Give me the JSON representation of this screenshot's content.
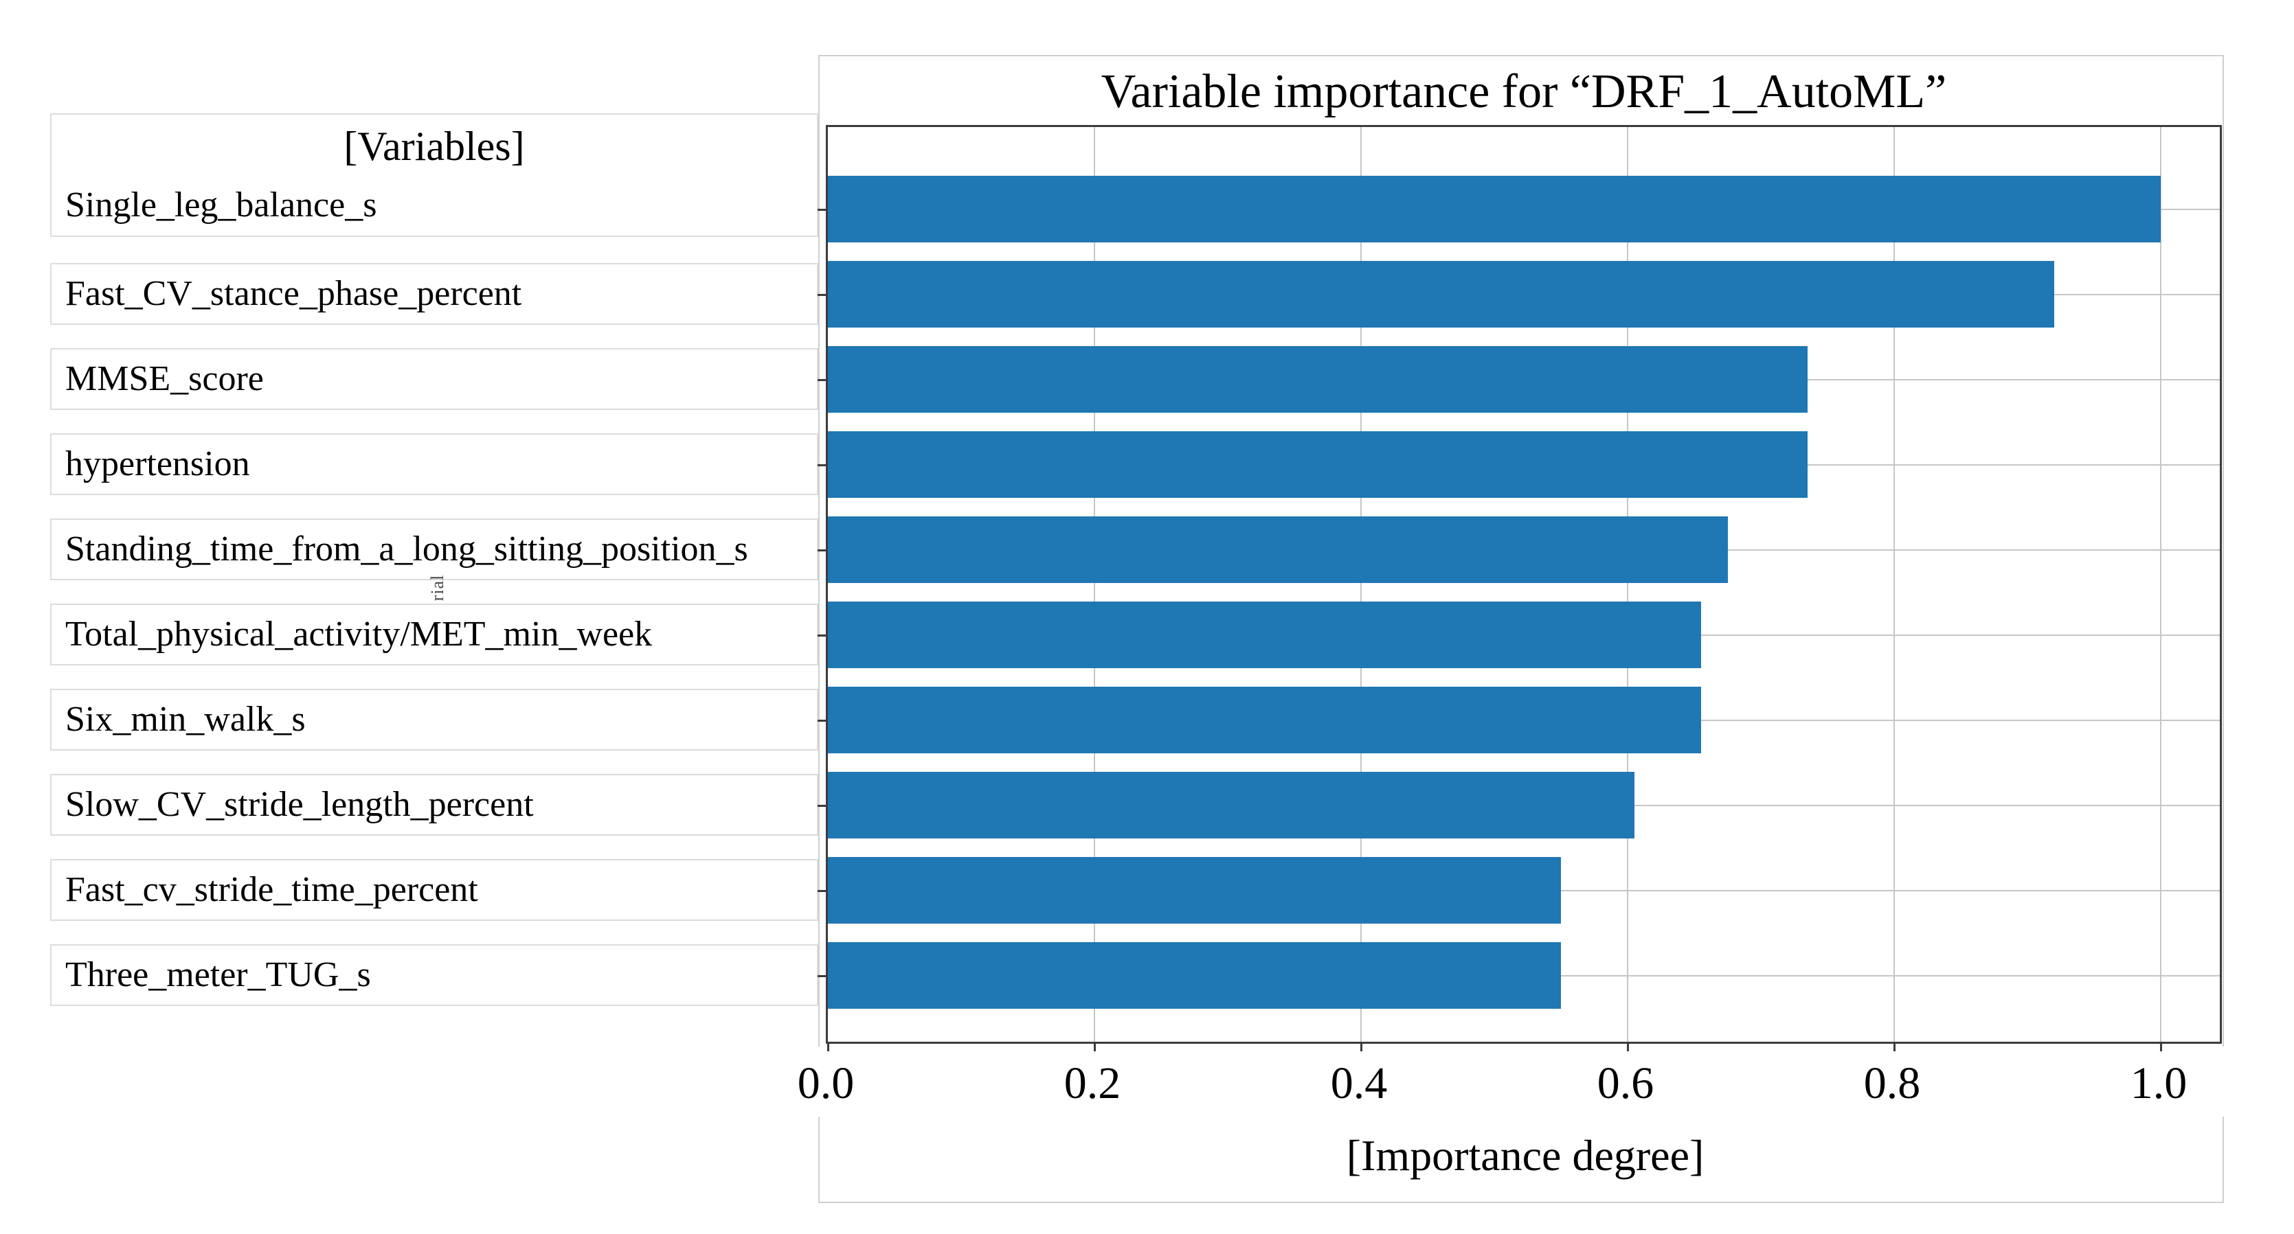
{
  "chart_data": {
    "type": "bar",
    "orientation": "horizontal",
    "title": "Variable importance for “DRF_1_AutoML”",
    "left_header": "[Variables]",
    "xlabel": "[Importance degree]",
    "categories": [
      "Single_leg_balance_s",
      "Fast_CV_stance_phase_percent",
      "MMSE_score",
      "hypertension",
      "Standing_time_from_a_long_sitting_position_s",
      "Total_physical_activity/MET_min_week",
      "Six_min_walk_s",
      "Slow_CV_stride_length_percent",
      "Fast_cv_stride_time_percent",
      "Three_meter_TUG_s"
    ],
    "values": [
      1.0,
      0.92,
      0.735,
      0.735,
      0.675,
      0.655,
      0.655,
      0.605,
      0.55,
      0.55
    ],
    "x_ticks": [
      {
        "value": 0.0,
        "label": "0.0"
      },
      {
        "value": 0.2,
        "label": "0.2"
      },
      {
        "value": 0.4,
        "label": "0.4"
      },
      {
        "value": 0.6,
        "label": "0.6"
      },
      {
        "value": 0.8,
        "label": "0.8"
      },
      {
        "value": 1.0,
        "label": "1.0"
      }
    ],
    "xlim": [
      0,
      1.05
    ],
    "grid": true,
    "legend": "none",
    "bar_color": "#1f77b4",
    "grid_color": "#c6c6c6",
    "frame_color": "#3c3c3c",
    "clipped_side_text": "rial"
  }
}
